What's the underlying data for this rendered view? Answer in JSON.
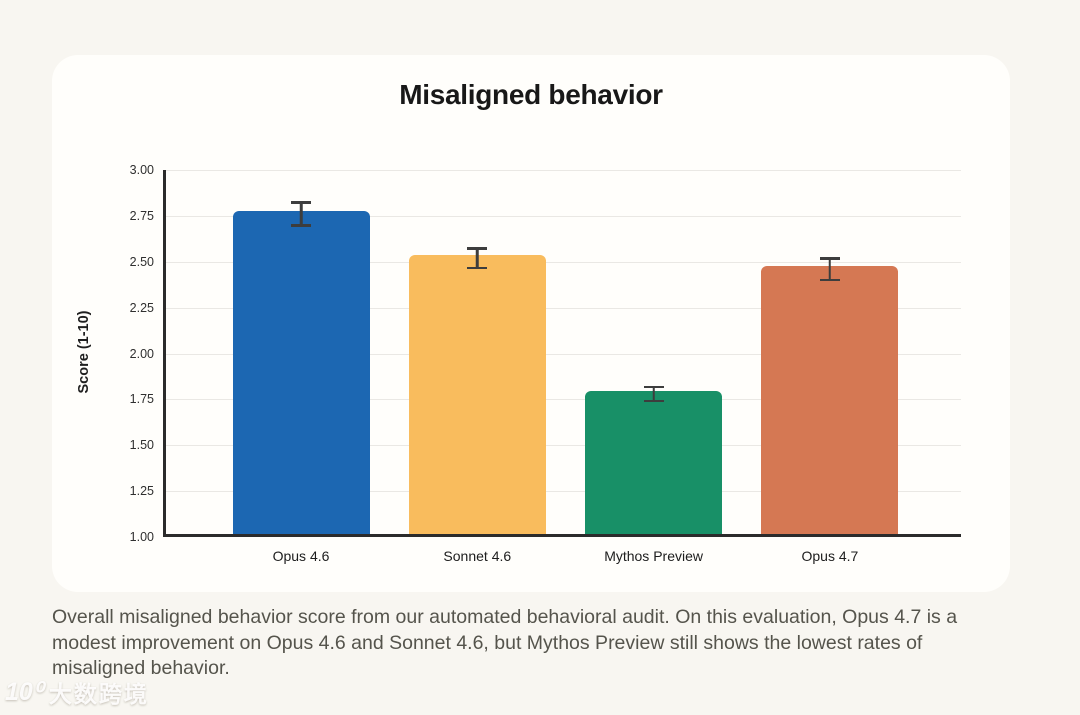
{
  "page": {
    "background_color": "#f8f6f1",
    "watermark": {
      "logo": "10⁰",
      "text": "大数跨境"
    }
  },
  "card": {
    "background_color": "#fffefb"
  },
  "chart_data": {
    "type": "bar",
    "title": "Misaligned behavior",
    "xlabel": "",
    "ylabel": "Score (1-10)",
    "categories": [
      "Opus 4.6",
      "Sonnet 4.6",
      "Mythos Preview",
      "Opus 4.7"
    ],
    "values": [
      2.76,
      2.52,
      1.78,
      2.46
    ],
    "error_bars": [
      0.07,
      0.06,
      0.045,
      0.065
    ],
    "bar_colors": [
      "#1c67b2",
      "#f9bc5d",
      "#189067",
      "#d57853"
    ],
    "ylim": [
      1.0,
      3.0
    ],
    "yticks": [
      1.0,
      1.25,
      1.5,
      1.75,
      2.0,
      2.25,
      2.5,
      2.75,
      3.0
    ],
    "ytick_labels": [
      "1.00",
      "1.25",
      "1.50",
      "1.75",
      "2.00",
      "2.25",
      "2.50",
      "2.75",
      "3.00"
    ],
    "grid": "horizontal",
    "legend": "none",
    "error_bar_color": "#3d3d3d"
  },
  "caption": {
    "text": "Overall misaligned behavior score from our automated behavioral audit. On this evaluation, Opus 4.7 is a modest improvement on Opus 4.6 and Sonnet 4.6, but Mythos Preview still shows the lowest rates of misaligned behavior."
  }
}
